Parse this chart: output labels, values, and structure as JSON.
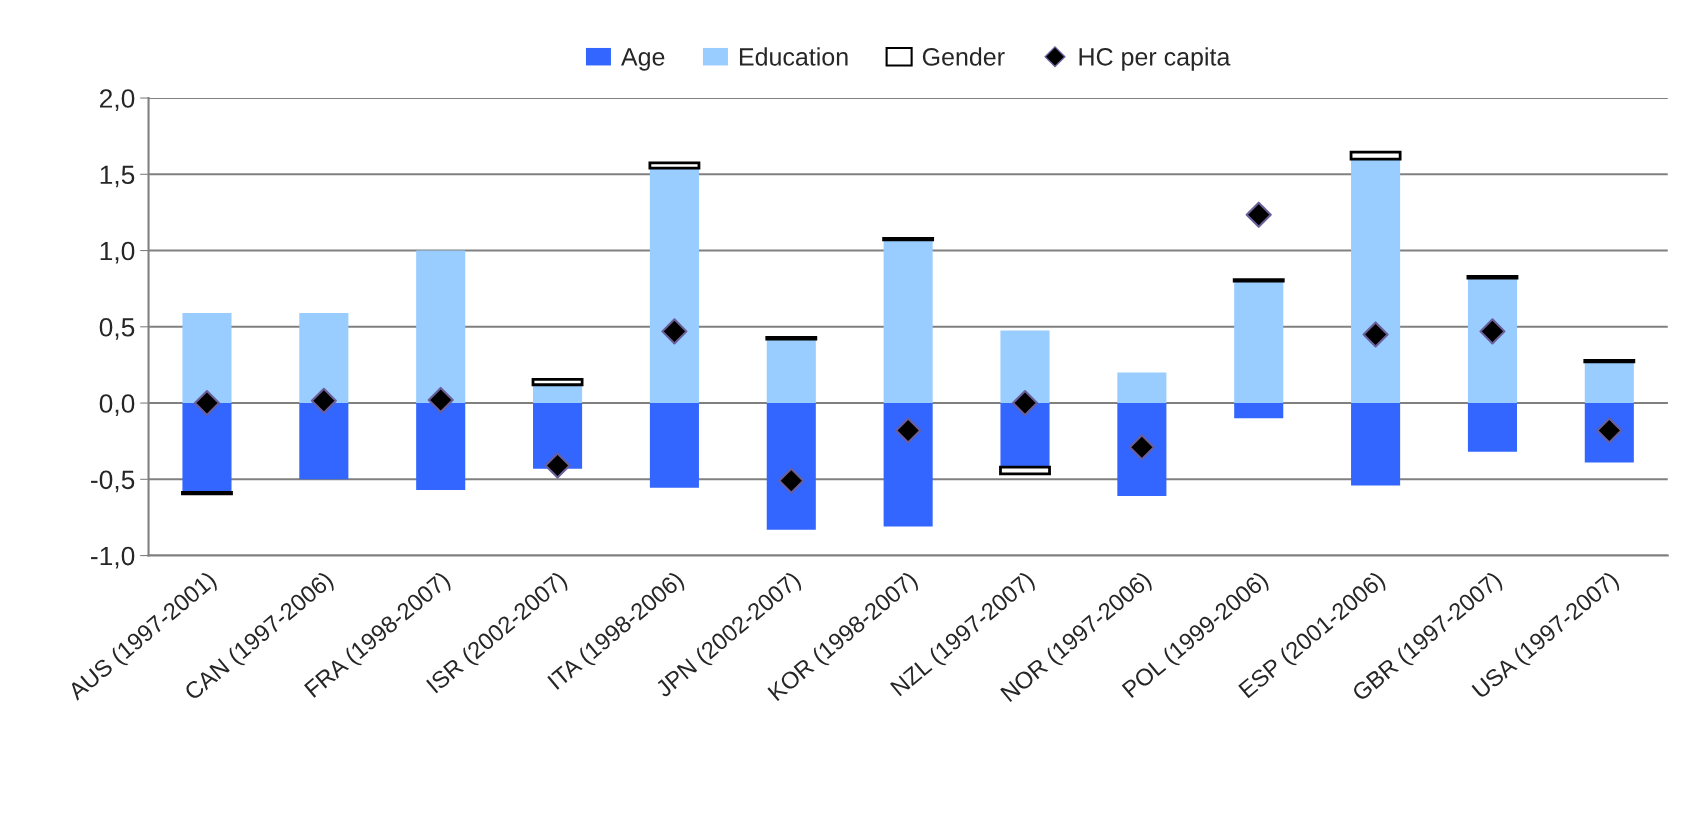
{
  "chart_data": {
    "type": "bar",
    "stacked": true,
    "categories": [
      "AUS (1997-2001)",
      "CAN (1997-2006)",
      "FRA (1998-2007)",
      "ISR (2002-2007)",
      "ITA (1998-2006)",
      "JPN (2002-2007)",
      "KOR (1998-2007)",
      "NZL (1997-2007)",
      "NOR (1997-2006)",
      "POL (1999-2006)",
      "ESP (2001-2006)",
      "GBR (1997-2007)",
      "USA (1997-2007)"
    ],
    "series": [
      {
        "name": "Age",
        "color": "#3366ff",
        "values": [
          -0.585,
          -0.5,
          -0.57,
          -0.43,
          -0.555,
          -0.83,
          -0.81,
          -0.42,
          -0.61,
          -0.1,
          -0.54,
          -0.32,
          -0.39
        ]
      },
      {
        "name": "Education",
        "color": "#99ccff",
        "values": [
          0.59,
          0.59,
          1.0,
          0.12,
          1.54,
          0.42,
          1.07,
          0.475,
          0.2,
          0.8,
          1.6,
          0.82,
          0.27
        ]
      },
      {
        "name": "Gender",
        "color": "#ffffff",
        "values": [
          -0.01,
          null,
          null,
          0.035,
          0.035,
          0.01,
          0.01,
          -0.045,
          null,
          0.01,
          0.045,
          0.01,
          0.01
        ]
      },
      {
        "name": "HC per capita",
        "type": "scatter",
        "color": "#000000",
        "marker": "diamond",
        "values": [
          0.0,
          0.015,
          0.02,
          -0.41,
          0.47,
          -0.51,
          -0.18,
          0.0,
          -0.29,
          1.235,
          0.45,
          0.47,
          -0.18
        ]
      }
    ],
    "ylim": [
      -1.0,
      2.0
    ],
    "yticks": [
      {
        "value": -1.0,
        "label": "-1,0"
      },
      {
        "value": -0.5,
        "label": "-0,5"
      },
      {
        "value": 0.0,
        "label": "0,0"
      },
      {
        "value": 0.5,
        "label": "0,5"
      },
      {
        "value": 1.0,
        "label": "1,0"
      },
      {
        "value": 1.5,
        "label": "1,5"
      },
      {
        "value": 2.0,
        "label": "2,0"
      }
    ],
    "grid": "y",
    "legend": "top"
  }
}
